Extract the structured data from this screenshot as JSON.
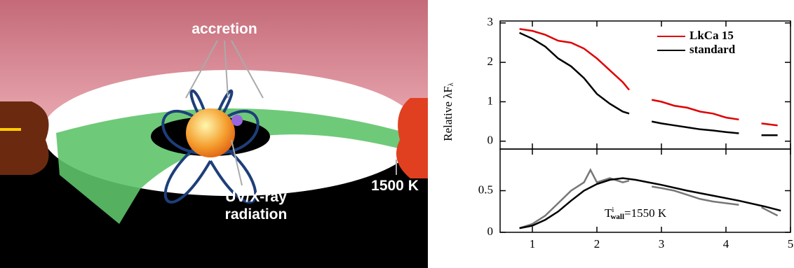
{
  "illustration": {
    "labels": [
      "accretion",
      "UV/X-ray",
      "radiation",
      "1500 K"
    ]
  },
  "chart_data": [
    {
      "type": "line",
      "ylabel": "Relative λF",
      "ylabel_sub": "λ",
      "xlim": [
        0.5,
        5
      ],
      "ylim": [
        -0.2,
        3.05
      ],
      "yticks": [
        0,
        1,
        2,
        3
      ],
      "legend": "top-right",
      "series": [
        {
          "name": "LkCa 15",
          "color": "#e00000",
          "x": [
            0.8,
            1.0,
            1.2,
            1.4,
            1.6,
            1.8,
            2.0,
            2.2,
            2.4,
            2.5,
            2.6,
            2.85,
            3.0,
            3.2,
            3.4,
            3.6,
            3.8,
            4.0,
            4.2,
            4.4,
            4.55,
            4.8
          ],
          "values": [
            2.85,
            2.8,
            2.7,
            2.55,
            2.5,
            2.35,
            2.1,
            1.8,
            1.5,
            1.3,
            null,
            1.05,
            1.0,
            0.9,
            0.85,
            0.75,
            0.7,
            0.6,
            0.55,
            null,
            0.45,
            0.4
          ]
        },
        {
          "name": "standard",
          "color": "#000000",
          "x": [
            0.8,
            1.0,
            1.2,
            1.4,
            1.6,
            1.8,
            2.0,
            2.2,
            2.4,
            2.5,
            2.6,
            2.85,
            3.0,
            3.2,
            3.4,
            3.6,
            3.8,
            4.0,
            4.2,
            4.4,
            4.55,
            4.8
          ],
          "values": [
            2.75,
            2.6,
            2.4,
            2.1,
            1.9,
            1.6,
            1.2,
            0.95,
            0.75,
            0.7,
            null,
            0.5,
            0.45,
            0.4,
            0.35,
            0.3,
            0.27,
            0.23,
            0.2,
            null,
            0.15,
            0.15
          ]
        }
      ]
    },
    {
      "type": "line",
      "annotation": [
        "T",
        "i",
        "wall",
        "=1550 K"
      ],
      "xlim": [
        0.5,
        5
      ],
      "ylim": [
        0,
        1
      ],
      "yticks": [
        0,
        0.5
      ],
      "xticks": [
        1,
        2,
        3,
        4,
        5
      ],
      "series": [
        {
          "color": "#777777",
          "x": [
            0.8,
            1.0,
            1.2,
            1.4,
            1.6,
            1.8,
            1.9,
            2.0,
            2.2,
            2.4,
            2.5,
            2.6,
            2.85,
            3.0,
            3.2,
            3.4,
            3.6,
            3.8,
            4.0,
            4.2,
            4.4,
            4.55,
            4.8
          ],
          "values": [
            0.05,
            0.1,
            0.2,
            0.35,
            0.5,
            0.6,
            0.75,
            0.6,
            0.65,
            0.6,
            0.62,
            null,
            0.55,
            0.53,
            0.5,
            0.45,
            0.4,
            0.37,
            0.35,
            0.33,
            null,
            0.3,
            0.2
          ]
        },
        {
          "color": "#000000",
          "x": [
            0.8,
            1.0,
            1.2,
            1.4,
            1.6,
            1.8,
            2.0,
            2.2,
            2.4,
            2.6,
            2.8,
            3.0,
            3.4,
            3.8,
            4.2,
            4.6,
            4.85
          ],
          "values": [
            0.05,
            0.08,
            0.15,
            0.25,
            0.38,
            0.5,
            0.58,
            0.63,
            0.65,
            0.63,
            0.6,
            0.57,
            0.5,
            0.44,
            0.38,
            0.31,
            0.26
          ]
        }
      ]
    }
  ]
}
